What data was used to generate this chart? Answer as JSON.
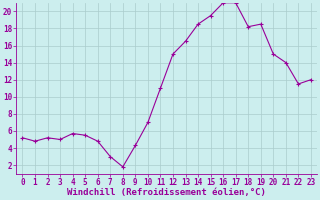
{
  "x": [
    0,
    1,
    2,
    3,
    4,
    5,
    6,
    7,
    8,
    9,
    10,
    11,
    12,
    13,
    14,
    15,
    16,
    17,
    18,
    19,
    20,
    21,
    22,
    23
  ],
  "y": [
    5.2,
    4.8,
    5.2,
    5.0,
    5.7,
    5.5,
    4.8,
    3.0,
    1.8,
    4.3,
    7.0,
    11.0,
    15.0,
    16.5,
    18.5,
    19.5,
    21.0,
    21.0,
    18.2,
    18.5,
    15.0,
    14.0,
    11.5,
    12.0
  ],
  "line_color": "#990099",
  "marker": "+",
  "bg_color": "#cceeee",
  "grid_color": "#aacccc",
  "axis_label_color": "#990099",
  "tick_label_color": "#990099",
  "xlabel": "Windchill (Refroidissement éolien,°C)",
  "xlim": [
    -0.5,
    23.5
  ],
  "ylim": [
    1,
    21
  ],
  "yticks": [
    2,
    4,
    6,
    8,
    10,
    12,
    14,
    16,
    18,
    20
  ],
  "xticks": [
    0,
    1,
    2,
    3,
    4,
    5,
    6,
    7,
    8,
    9,
    10,
    11,
    12,
    13,
    14,
    15,
    16,
    17,
    18,
    19,
    20,
    21,
    22,
    23
  ],
  "label_fontsize": 6.5,
  "tick_fontsize": 5.5
}
